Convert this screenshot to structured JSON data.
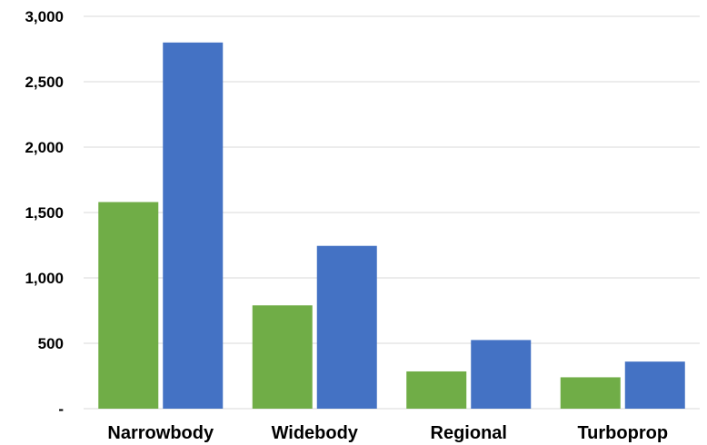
{
  "chart_data": {
    "type": "bar",
    "title": "",
    "xlabel": "",
    "ylabel": "",
    "categories": [
      "Narrowbody",
      "Widebody",
      "Regional",
      "Turboprop"
    ],
    "series": [
      {
        "color": "#70ad47",
        "values": [
          1580,
          790,
          285,
          240
        ]
      },
      {
        "color": "#4472c4",
        "values": [
          2800,
          1245,
          525,
          360
        ]
      }
    ],
    "ylim": [
      0,
      3000
    ],
    "yticks": [
      {
        "value": 0,
        "label": "-"
      },
      {
        "value": 500,
        "label": "500"
      },
      {
        "value": 1000,
        "label": "1,000"
      },
      {
        "value": 1500,
        "label": "1,500"
      },
      {
        "value": 2000,
        "label": "2,000"
      },
      {
        "value": 2500,
        "label": "2,500"
      },
      {
        "value": 3000,
        "label": "3,000"
      }
    ],
    "grid": true,
    "legend": "none"
  }
}
